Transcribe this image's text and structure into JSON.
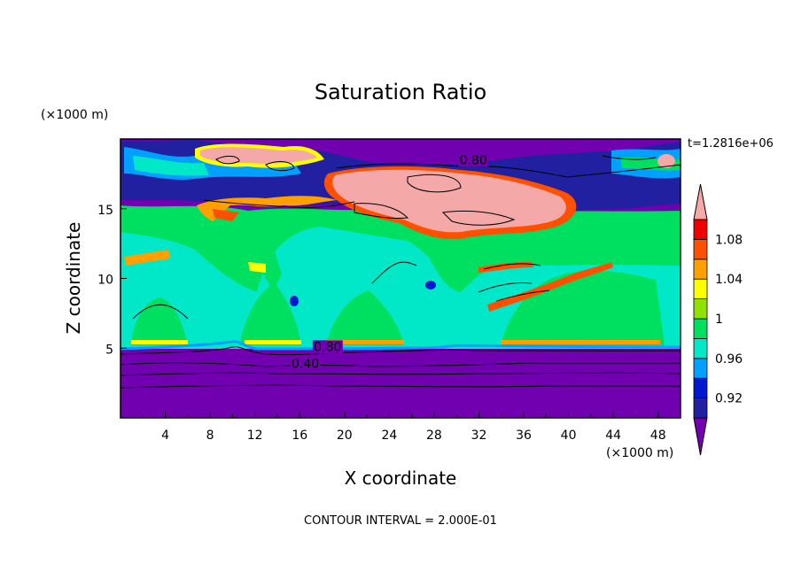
{
  "chart_data": {
    "type": "filled-contour",
    "title": "Saturation Ratio",
    "xlabel": "X coordinate",
    "ylabel": "Z coordinate",
    "x_unit": "(×1000 m)",
    "y_unit": "(×1000 m)",
    "time_label": "t=1.2816e+06",
    "footer": "CONTOUR INTERVAL = 2.000E-01",
    "xlim": [
      0,
      50
    ],
    "ylim": [
      0,
      20
    ],
    "x_ticks": [
      4,
      8,
      12,
      16,
      20,
      24,
      28,
      32,
      36,
      40,
      44,
      48
    ],
    "y_ticks": [
      5,
      10,
      15
    ],
    "contour_interval": 0.2,
    "line_contour_labels": [
      {
        "text": "0.80",
        "x": 31.5,
        "y": 18.2
      },
      {
        "text": "0.80",
        "x": 18.5,
        "y": 4.8
      },
      {
        "text": "0.40",
        "x": 16.5,
        "y": 3.6
      }
    ],
    "colorbar": {
      "levels": [
        0.92,
        0.94,
        0.96,
        0.98,
        1.0,
        1.02,
        1.04,
        1.06,
        1.08,
        1.1
      ],
      "labels": [
        "0.92",
        "0.96",
        "1",
        "1.04",
        "1.08"
      ],
      "colors": [
        "#7000b0",
        "#2020a0",
        "#0018d0",
        "#00a0ff",
        "#00e8c8",
        "#00e060",
        "#90e000",
        "#ffff00",
        "#ffa000",
        "#ff5000",
        "#f00000",
        "#f4a8a8"
      ],
      "extend": "both"
    }
  }
}
